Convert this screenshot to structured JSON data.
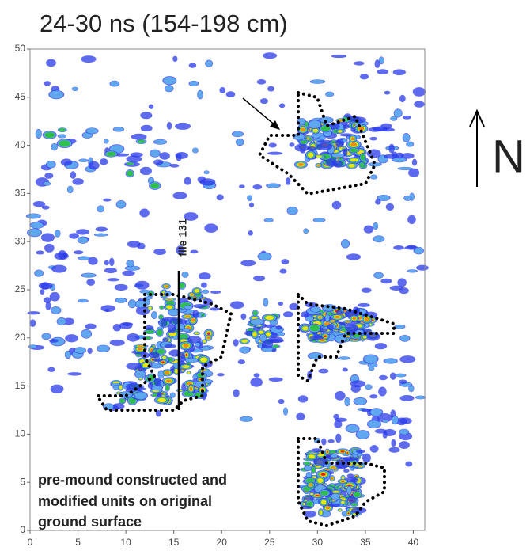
{
  "chart_data": {
    "type": "map",
    "title": "24-30 ns (154-198 cm)",
    "xlim": [
      0,
      41.2
    ],
    "ylim": [
      0,
      50
    ],
    "xticks": [
      0,
      5,
      10,
      15,
      20,
      25,
      30,
      35,
      40
    ],
    "yticks": [
      0,
      5,
      10,
      15,
      20,
      25,
      30,
      35,
      40,
      45,
      50
    ],
    "file_label": "file 131",
    "note": [
      "pre-mound constructed and",
      "modified units on original",
      "ground surface"
    ],
    "north": "N"
  }
}
